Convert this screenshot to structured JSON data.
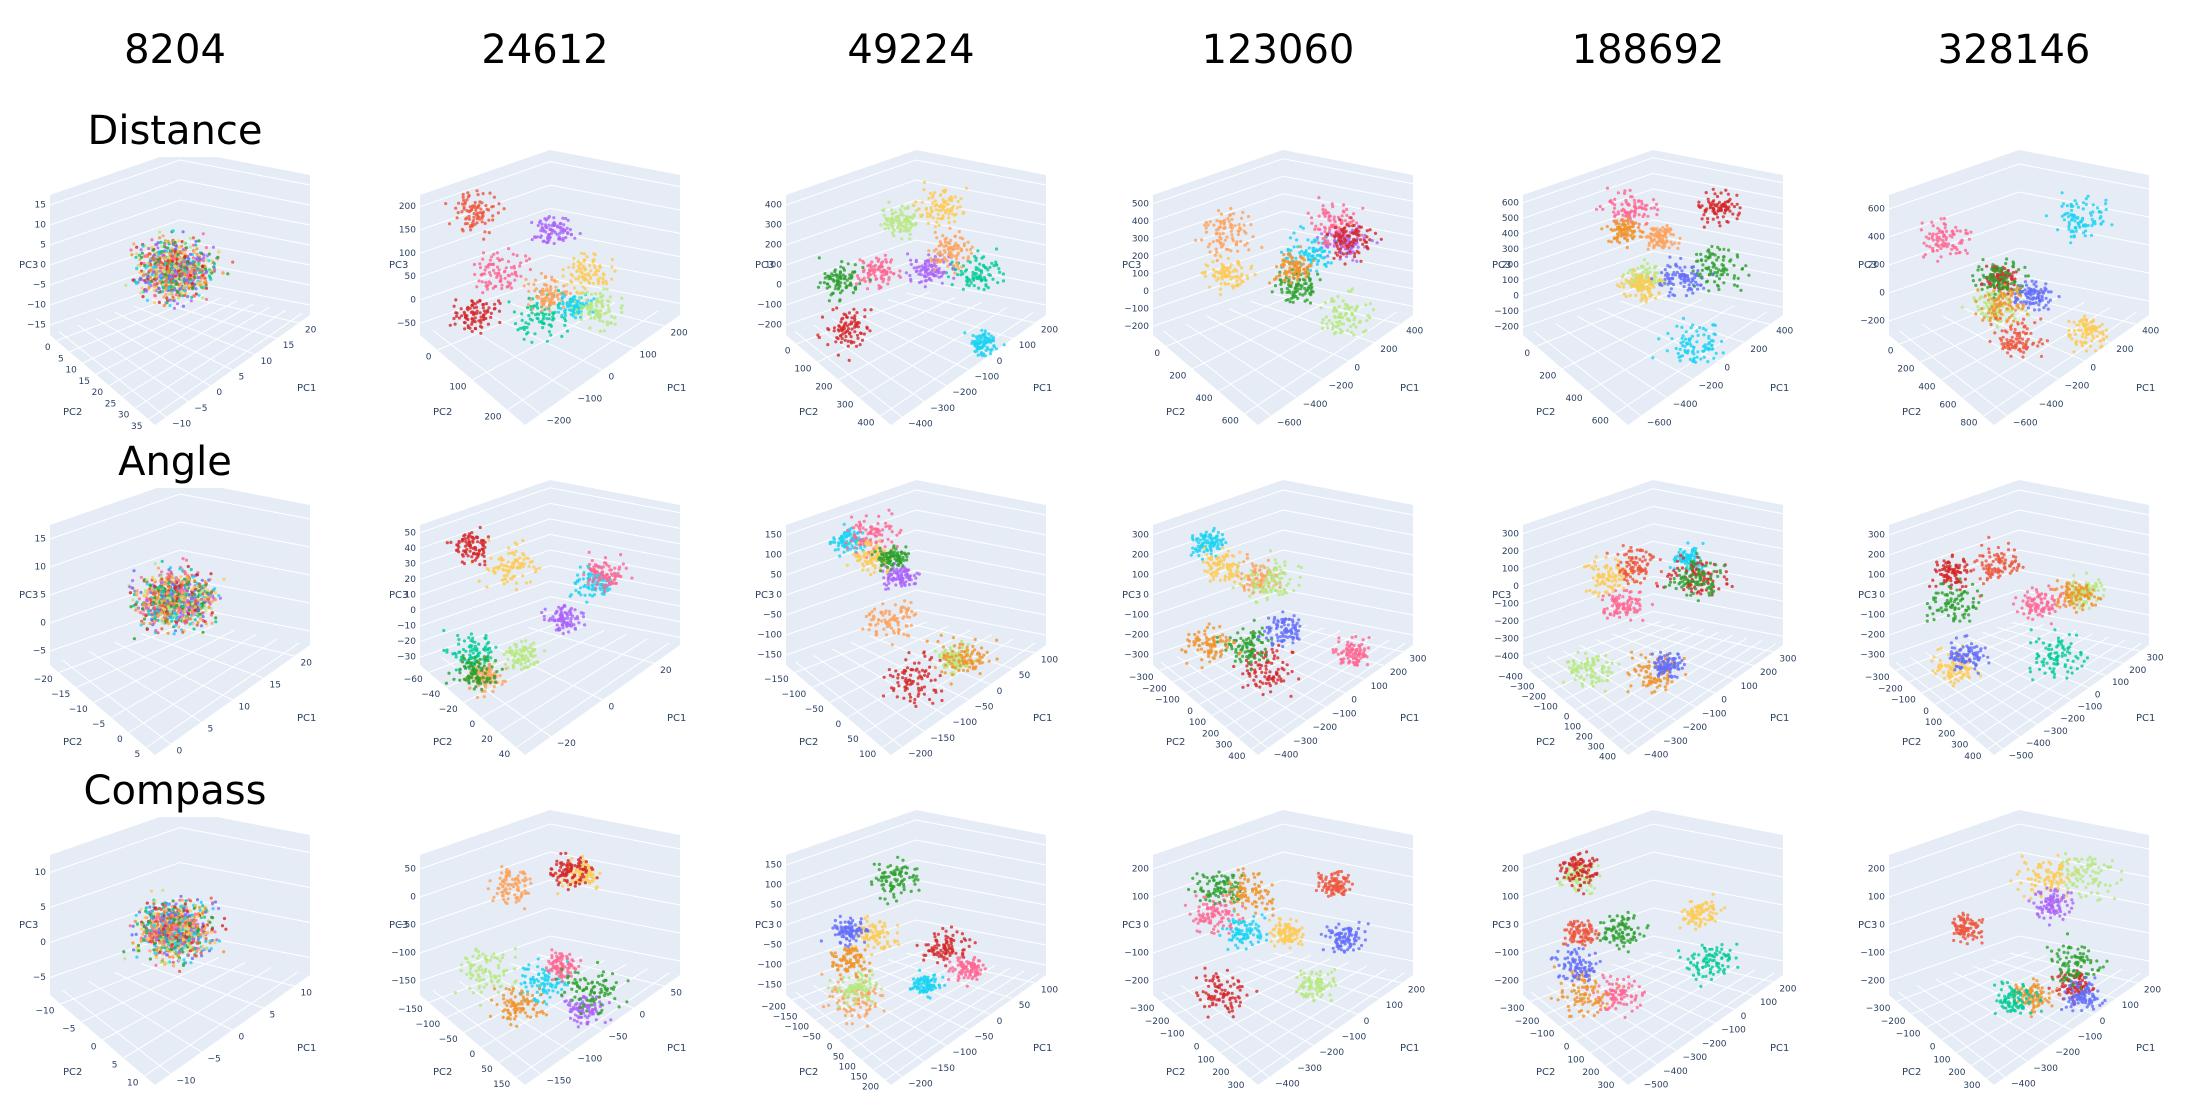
{
  "columns": [
    "8204",
    "24612",
    "49224",
    "123060",
    "188692",
    "328146"
  ],
  "axis_titles": {
    "z": "PC3",
    "y": "PC2",
    "x": "PC1"
  },
  "rows": [
    {
      "label": "Distance",
      "panels": [
        {
          "PC3": [
            "15",
            "10",
            "5",
            "0",
            "−5",
            "−10",
            "−15"
          ],
          "PC2": [
            "0",
            "5",
            "10",
            "15",
            "20",
            "25",
            "30",
            "35"
          ],
          "PC1": [
            "−10",
            "−5",
            "0",
            "5",
            "10",
            "15",
            "20"
          ]
        },
        {
          "PC3": [
            "200",
            "150",
            "100",
            "50",
            "0",
            "−50"
          ],
          "PC2": [
            "0",
            "100",
            "200"
          ],
          "PC1": [
            "−200",
            "−100",
            "0",
            "100",
            "200"
          ]
        },
        {
          "PC3": [
            "400",
            "300",
            "200",
            "100",
            "0",
            "−100",
            "−200"
          ],
          "PC2": [
            "0",
            "100",
            "200",
            "300",
            "400"
          ],
          "PC1": [
            "−400",
            "−300",
            "−200",
            "−100",
            "0",
            "100",
            "200"
          ]
        },
        {
          "PC3": [
            "500",
            "400",
            "300",
            "200",
            "100",
            "0",
            "−100",
            "−200"
          ],
          "PC2": [
            "0",
            "200",
            "400",
            "600"
          ],
          "PC1": [
            "−600",
            "−400",
            "−200",
            "0",
            "200",
            "400"
          ]
        },
        {
          "PC3": [
            "600",
            "500",
            "400",
            "300",
            "200",
            "100",
            "0",
            "−100",
            "−200"
          ],
          "PC2": [
            "0",
            "200",
            "400",
            "600"
          ],
          "PC1": [
            "−600",
            "−400",
            "−200",
            "0",
            "200",
            "400"
          ]
        },
        {
          "PC3": [
            "600",
            "400",
            "200",
            "0",
            "−200"
          ],
          "PC2": [
            "0",
            "200",
            "400",
            "600",
            "800"
          ],
          "PC1": [
            "−600",
            "−400",
            "−200",
            "0",
            "200",
            "400"
          ]
        }
      ]
    },
    {
      "label": "Angle",
      "panels": [
        {
          "PC3": [
            "15",
            "10",
            "5",
            "0",
            "−5"
          ],
          "PC2": [
            "−20",
            "−15",
            "−10",
            "−5",
            "0",
            "5"
          ],
          "PC1": [
            "0",
            "5",
            "10",
            "15",
            "20"
          ]
        },
        {
          "PC3": [
            "50",
            "40",
            "30",
            "20",
            "10",
            "0",
            "−10",
            "−20",
            "−30"
          ],
          "PC2": [
            "−60",
            "−40",
            "−20",
            "0",
            "20",
            "40"
          ],
          "PC1": [
            "−20",
            "0",
            "20"
          ]
        },
        {
          "PC3": [
            "150",
            "100",
            "50",
            "0",
            "−50",
            "−100",
            "−150"
          ],
          "PC2": [
            "−150",
            "−100",
            "−50",
            "0",
            "50",
            "100"
          ],
          "PC1": [
            "−200",
            "−150",
            "−100",
            "−50",
            "0",
            "50",
            "100"
          ]
        },
        {
          "PC3": [
            "300",
            "200",
            "100",
            "0",
            "−100",
            "−200",
            "−300"
          ],
          "PC2": [
            "−300",
            "−200",
            "−100",
            "0",
            "100",
            "200",
            "300",
            "400"
          ],
          "PC1": [
            "−400",
            "−300",
            "−200",
            "−100",
            "0",
            "100",
            "200",
            "300"
          ]
        },
        {
          "PC3": [
            "300",
            "200",
            "100",
            "0",
            "−100",
            "−200",
            "−300",
            "−400"
          ],
          "PC2": [
            "−400",
            "−300",
            "−200",
            "−100",
            "0",
            "100",
            "200",
            "300",
            "400"
          ],
          "PC1": [
            "−400",
            "−300",
            "−200",
            "−100",
            "0",
            "100",
            "200",
            "300"
          ]
        },
        {
          "PC3": [
            "300",
            "200",
            "100",
            "0",
            "−100",
            "−200",
            "−300"
          ],
          "PC2": [
            "−300",
            "−200",
            "−100",
            "0",
            "100",
            "200",
            "300",
            "400"
          ],
          "PC1": [
            "−500",
            "−400",
            "−300",
            "−200",
            "−100",
            "0",
            "100",
            "200",
            "300"
          ]
        }
      ]
    },
    {
      "label": "Compass",
      "panels": [
        {
          "PC3": [
            "10",
            "5",
            "0",
            "−5"
          ],
          "PC2": [
            "−10",
            "−5",
            "0",
            "5",
            "10"
          ],
          "PC1": [
            "−10",
            "−5",
            "0",
            "5",
            "10"
          ]
        },
        {
          "PC3": [
            "50",
            "0",
            "−50",
            "−100",
            "−150"
          ],
          "PC2": [
            "−150",
            "−100",
            "−50",
            "0",
            "50",
            "150"
          ],
          "PC1": [
            "−150",
            "−100",
            "−50",
            "0",
            "50"
          ]
        },
        {
          "PC3": [
            "150",
            "100",
            "50",
            "0",
            "−50",
            "−100",
            "−150"
          ],
          "PC2": [
            "−200",
            "−150",
            "−100",
            "−50",
            "0",
            "50",
            "100",
            "150",
            "200"
          ],
          "PC1": [
            "−200",
            "−150",
            "−100",
            "−50",
            "0",
            "50",
            "100"
          ]
        },
        {
          "PC3": [
            "200",
            "100",
            "0",
            "−100",
            "−200"
          ],
          "PC2": [
            "−300",
            "−200",
            "−100",
            "0",
            "100",
            "200",
            "300"
          ],
          "PC1": [
            "−400",
            "−300",
            "−200",
            "−100",
            "0",
            "100",
            "200"
          ]
        },
        {
          "PC3": [
            "200",
            "100",
            "0",
            "−100",
            "−200"
          ],
          "PC2": [
            "−300",
            "−200",
            "−100",
            "0",
            "100",
            "200",
            "300"
          ],
          "PC1": [
            "−500",
            "−400",
            "−300",
            "−200",
            "−100",
            "0",
            "100",
            "200"
          ]
        },
        {
          "PC3": [
            "200",
            "100",
            "0",
            "−100",
            "−200"
          ],
          "PC2": [
            "−300",
            "−200",
            "−100",
            "0",
            "100",
            "200",
            "300"
          ],
          "PC1": [
            "−400",
            "−300",
            "−200",
            "−100",
            "0",
            "100",
            "200"
          ]
        }
      ]
    }
  ]
}
